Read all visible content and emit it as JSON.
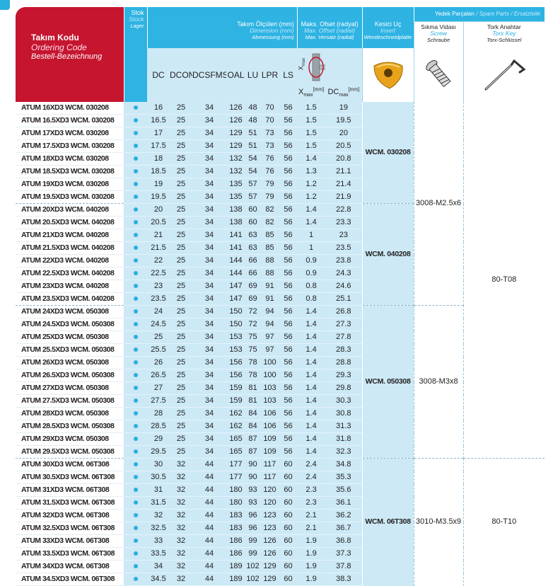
{
  "header": {
    "ordering_code": [
      "Takım Kodu",
      "Ordering Code",
      "Bestell-Bezeichnung"
    ],
    "stock": [
      "Stok",
      "Stock",
      "Lager"
    ],
    "dimensions": [
      "Takım Ölçüleri (mm)",
      "Dimension (mm)",
      "Abmessung (mm)"
    ],
    "offset": [
      "Maks. Ofset (radyal)",
      "Max. Offset (radial)",
      "Max. Versatz (radial)"
    ],
    "insert": [
      "Kesici Uç",
      "Insert",
      "Wendeschneidplatte"
    ],
    "spare_parts": [
      "Yedek Parçaları",
      "/ Spare Parts /",
      "Ersatzteile"
    ],
    "screw": [
      "Sıkma Vidası",
      "Screw",
      "Schraube"
    ],
    "torx_key": [
      "Tork Anahtar",
      "Torx Key",
      "Torx-Schlüssel"
    ]
  },
  "columns": [
    "DC",
    "DCON",
    "DCSFMS",
    "OAL",
    "LU",
    "LPR",
    "LS"
  ],
  "offset_columns": [
    {
      "label": "X",
      "sub": "max",
      "unit": "[mm]"
    },
    {
      "label": "DC",
      "sub": "max",
      "unit": "[mm]"
    }
  ],
  "diagram_label": {
    "label": "X",
    "sub": "max"
  },
  "rows": [
    {
      "code": "ATUM 16XD3 WCM. 030208",
      "values": [
        16,
        25,
        34,
        126,
        48,
        70,
        56,
        1.5,
        19
      ]
    },
    {
      "code": "ATUM 16.5XD3 WCM. 030208",
      "values": [
        16.5,
        25,
        34,
        126,
        48,
        70,
        56,
        1.5,
        19.5
      ]
    },
    {
      "code": "ATUM 17XD3 WCM. 030208",
      "values": [
        17,
        25,
        34,
        129,
        51,
        73,
        56,
        1.5,
        20
      ]
    },
    {
      "code": "ATUM 17.5XD3 WCM. 030208",
      "values": [
        17.5,
        25,
        34,
        129,
        51,
        73,
        56,
        1.5,
        20.5
      ]
    },
    {
      "code": "ATUM 18XD3 WCM. 030208",
      "values": [
        18,
        25,
        34,
        132,
        54,
        76,
        56,
        1.4,
        20.8
      ]
    },
    {
      "code": "ATUM 18.5XD3 WCM. 030208",
      "values": [
        18.5,
        25,
        34,
        132,
        54,
        76,
        56,
        1.3,
        21.1
      ]
    },
    {
      "code": "ATUM 19XD3 WCM. 030208",
      "values": [
        19,
        25,
        34,
        135,
        57,
        79,
        56,
        1.2,
        21.4
      ]
    },
    {
      "code": "ATUM 19.5XD3 WCM. 030208",
      "values": [
        19.5,
        25,
        34,
        135,
        57,
        79,
        56,
        1.2,
        21.9
      ]
    },
    {
      "code": "ATUM 20XD3 WCM. 040208",
      "values": [
        20,
        25,
        34,
        138,
        60,
        82,
        56,
        1.4,
        22.8
      ]
    },
    {
      "code": "ATUM 20.5XD3 WCM. 040208",
      "values": [
        20.5,
        25,
        34,
        138,
        60,
        82,
        56,
        1.4,
        23.3
      ]
    },
    {
      "code": "ATUM 21XD3 WCM. 040208",
      "values": [
        21,
        25,
        34,
        141,
        63,
        85,
        56,
        1,
        23
      ]
    },
    {
      "code": "ATUM 21.5XD3 WCM. 040208",
      "values": [
        21.5,
        25,
        34,
        141,
        63,
        85,
        56,
        1,
        23.5
      ]
    },
    {
      "code": "ATUM 22XD3 WCM. 040208",
      "values": [
        22,
        25,
        34,
        144,
        66,
        88,
        56,
        0.9,
        23.8
      ]
    },
    {
      "code": "ATUM 22.5XD3 WCM. 040208",
      "values": [
        22.5,
        25,
        34,
        144,
        66,
        88,
        56,
        0.9,
        24.3
      ]
    },
    {
      "code": "ATUM 23XD3 WCM. 040208",
      "values": [
        23,
        25,
        34,
        147,
        69,
        91,
        56,
        0.8,
        24.6
      ]
    },
    {
      "code": "ATUM 23.5XD3 WCM. 040208",
      "values": [
        23.5,
        25,
        34,
        147,
        69,
        91,
        56,
        0.8,
        25.1
      ]
    },
    {
      "code": "ATUM 24XD3 WCM. 050308",
      "values": [
        24,
        25,
        34,
        150,
        72,
        94,
        56,
        1.4,
        26.8
      ]
    },
    {
      "code": "ATUM 24.5XD3 WCM. 050308",
      "values": [
        24.5,
        25,
        34,
        150,
        72,
        94,
        56,
        1.4,
        27.3
      ]
    },
    {
      "code": "ATUM 25XD3 WCM. 050308",
      "values": [
        25,
        25,
        34,
        153,
        75,
        97,
        56,
        1.4,
        27.8
      ]
    },
    {
      "code": "ATUM 25.5XD3 WCM. 050308",
      "values": [
        25.5,
        25,
        34,
        153,
        75,
        97,
        56,
        1.4,
        28.3
      ]
    },
    {
      "code": "ATUM 26XD3 WCM. 050308",
      "values": [
        26,
        25,
        34,
        156,
        78,
        100,
        56,
        1.4,
        28.8
      ]
    },
    {
      "code": "ATUM 26.5XD3 WCM. 050308",
      "values": [
        26.5,
        25,
        34,
        156,
        78,
        100,
        56,
        1.4,
        29.3
      ]
    },
    {
      "code": "ATUM 27XD3 WCM. 050308",
      "values": [
        27,
        25,
        34,
        159,
        81,
        103,
        56,
        1.4,
        29.8
      ]
    },
    {
      "code": "ATUM 27.5XD3 WCM. 050308",
      "values": [
        27.5,
        25,
        34,
        159,
        81,
        103,
        56,
        1.4,
        30.3
      ]
    },
    {
      "code": "ATUM 28XD3 WCM. 050308",
      "values": [
        28,
        25,
        34,
        162,
        84,
        106,
        56,
        1.4,
        30.8
      ]
    },
    {
      "code": "ATUM 28.5XD3 WCM. 050308",
      "values": [
        28.5,
        25,
        34,
        162,
        84,
        106,
        56,
        1.4,
        31.3
      ]
    },
    {
      "code": "ATUM 29XD3 WCM. 050308",
      "values": [
        29,
        25,
        34,
        165,
        87,
        109,
        56,
        1.4,
        31.8
      ]
    },
    {
      "code": "ATUM 29.5XD3 WCM. 050308",
      "values": [
        29.5,
        25,
        34,
        165,
        87,
        109,
        56,
        1.4,
        32.3
      ]
    },
    {
      "code": "ATUM 30XD3 WCM. 06T308",
      "values": [
        30,
        32,
        44,
        177,
        90,
        117,
        60,
        2.4,
        34.8
      ]
    },
    {
      "code": "ATUM 30.5XD3 WCM. 06T308",
      "values": [
        30.5,
        32,
        44,
        177,
        90,
        117,
        60,
        2.4,
        35.3
      ]
    },
    {
      "code": "ATUM 31XD3 WCM. 06T308",
      "values": [
        31,
        32,
        44,
        180,
        93,
        120,
        60,
        2.3,
        35.6
      ]
    },
    {
      "code": "ATUM 31.5XD3 WCM. 06T308",
      "values": [
        31.5,
        32,
        44,
        180,
        93,
        120,
        60,
        2.3,
        36.1
      ]
    },
    {
      "code": "ATUM 32XD3 WCM. 06T308",
      "values": [
        32,
        32,
        44,
        183,
        96,
        123,
        60,
        2.1,
        36.2
      ]
    },
    {
      "code": "ATUM 32.5XD3 WCM. 06T308",
      "values": [
        32.5,
        32,
        44,
        183,
        96,
        123,
        60,
        2.1,
        36.7
      ]
    },
    {
      "code": "ATUM 33XD3 WCM. 06T308",
      "values": [
        33,
        32,
        44,
        186,
        99,
        126,
        60,
        1.9,
        36.8
      ]
    },
    {
      "code": "ATUM 33.5XD3 WCM. 06T308",
      "values": [
        33.5,
        32,
        44,
        186,
        99,
        126,
        60,
        1.9,
        37.3
      ]
    },
    {
      "code": "ATUM 34XD3 WCM. 06T308",
      "values": [
        34,
        32,
        44,
        189,
        102,
        129,
        60,
        1.9,
        37.8
      ]
    },
    {
      "code": "ATUM 34.5XD3 WCM. 06T308",
      "values": [
        34.5,
        32,
        44,
        189,
        102,
        129,
        60,
        1.9,
        38.3
      ]
    }
  ],
  "inserts": [
    "WCM. 030208",
    "WCM. 040208",
    "WCM. 050308",
    "WCM. 06T308"
  ],
  "screws": [
    "3008-M2.5x6",
    "3008-M3x8",
    "3010-M3.5x9"
  ],
  "torx_keys": [
    "80-T08",
    "80-T10"
  ]
}
